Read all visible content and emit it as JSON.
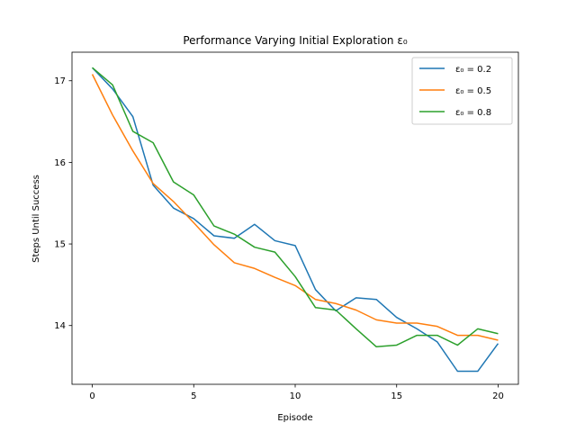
{
  "chart_data": {
    "type": "line",
    "title": "Performance Varying Initial Exploration ε₀",
    "xlabel": "Episode",
    "ylabel": "Steps Until Success",
    "xlim": [
      -1,
      21
    ],
    "ylim": [
      13.28,
      17.35
    ],
    "xticks": [
      0,
      5,
      10,
      15,
      20
    ],
    "yticks": [
      14,
      15,
      16,
      17
    ],
    "grid": false,
    "legend_position": "top-right",
    "x": [
      0,
      1,
      2,
      3,
      4,
      5,
      6,
      7,
      8,
      9,
      10,
      11,
      12,
      13,
      14,
      15,
      16,
      17,
      18,
      19,
      20
    ],
    "series": [
      {
        "name": "ε₀ = 0.2",
        "color": "#1f77b4",
        "values": [
          17.16,
          16.9,
          16.56,
          15.72,
          15.44,
          15.31,
          15.1,
          15.07,
          15.24,
          15.04,
          14.98,
          14.44,
          14.18,
          14.34,
          14.32,
          14.1,
          13.96,
          13.8,
          13.44,
          13.44,
          13.78
        ]
      },
      {
        "name": "ε₀ = 0.5",
        "color": "#ff7f0e",
        "values": [
          17.08,
          16.58,
          16.14,
          15.74,
          15.52,
          15.26,
          14.99,
          14.77,
          14.7,
          14.59,
          14.49,
          14.32,
          14.27,
          14.19,
          14.07,
          14.03,
          14.03,
          13.99,
          13.88,
          13.88,
          13.82
        ]
      },
      {
        "name": "ε₀ = 0.8",
        "color": "#2ca02c",
        "values": [
          17.16,
          16.95,
          16.38,
          16.24,
          15.76,
          15.6,
          15.22,
          15.12,
          14.96,
          14.9,
          14.6,
          14.22,
          14.19,
          13.96,
          13.74,
          13.76,
          13.88,
          13.88,
          13.76,
          13.96,
          13.9
        ]
      }
    ]
  }
}
